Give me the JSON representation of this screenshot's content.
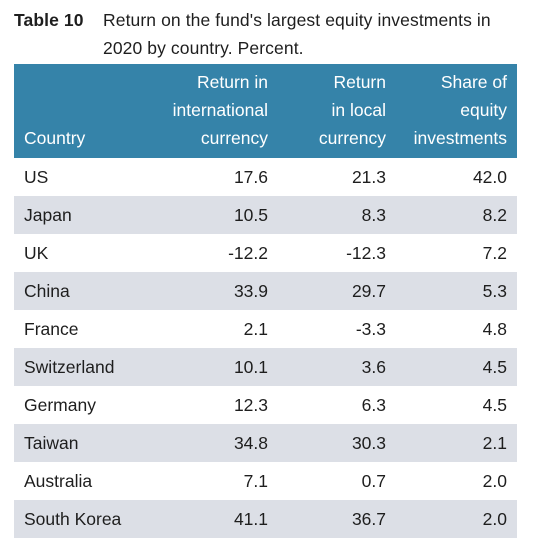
{
  "caption": {
    "label": "Table 10",
    "title": "Return on the fund's largest equity investments in 2020 by country. Percent."
  },
  "columns": [
    [
      "Country"
    ],
    [
      "Return in",
      "international",
      "currency"
    ],
    [
      "Return",
      "in local",
      "currency"
    ],
    [
      "Share of",
      "equity",
      "investments"
    ]
  ],
  "rows": [
    {
      "country": "US",
      "intl": "17.6",
      "local": "21.3",
      "share": "42.0"
    },
    {
      "country": "Japan",
      "intl": "10.5",
      "local": "8.3",
      "share": "8.2"
    },
    {
      "country": "UK",
      "intl": "-12.2",
      "local": "-12.3",
      "share": "7.2"
    },
    {
      "country": "China",
      "intl": "33.9",
      "local": "29.7",
      "share": "5.3"
    },
    {
      "country": "France",
      "intl": "2.1",
      "local": "-3.3",
      "share": "4.8"
    },
    {
      "country": "Switzerland",
      "intl": "10.1",
      "local": "3.6",
      "share": "4.5"
    },
    {
      "country": "Germany",
      "intl": "12.3",
      "local": "6.3",
      "share": "4.5"
    },
    {
      "country": "Taiwan",
      "intl": "34.8",
      "local": "30.3",
      "share": "2.1"
    },
    {
      "country": "Australia",
      "intl": "7.1",
      "local": "0.7",
      "share": "2.0"
    },
    {
      "country": "South Korea",
      "intl": "41.1",
      "local": "36.7",
      "share": "2.0"
    }
  ],
  "colors": {
    "header_bg": "#3583a9",
    "stripe_bg": "#dcdfe6",
    "header_text": "#ffffff"
  }
}
